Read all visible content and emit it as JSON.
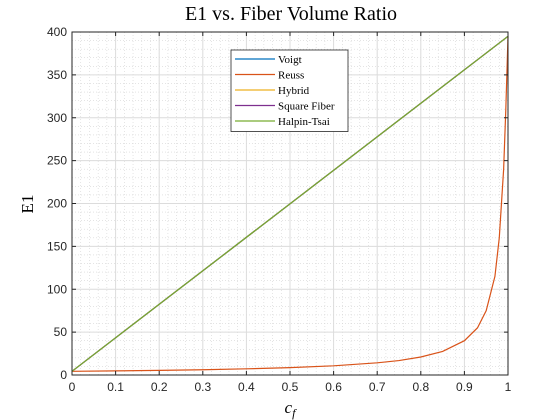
{
  "chart_data": {
    "type": "line",
    "title": "E1 vs. Fiber Volume Ratio",
    "xlabel_main": "c",
    "xlabel_sub": "f",
    "ylabel": "E1",
    "xlim": [
      0,
      1
    ],
    "ylim": [
      0,
      400
    ],
    "xticks": [
      0,
      0.1,
      0.2,
      0.3,
      0.4,
      0.5,
      0.6,
      0.7,
      0.8,
      0.9,
      1
    ],
    "yticks": [
      0,
      50,
      100,
      150,
      200,
      250,
      300,
      350,
      400
    ],
    "grid": true,
    "minor_grid": true,
    "legend_position": "top-center",
    "series": [
      {
        "name": "Voigt",
        "color": "#0072BD",
        "x": [
          0,
          1
        ],
        "y": [
          4.3,
          395
        ]
      },
      {
        "name": "Reuss",
        "color": "#D95319",
        "x": [
          0,
          0.1,
          0.2,
          0.3,
          0.4,
          0.5,
          0.6,
          0.7,
          0.75,
          0.8,
          0.85,
          0.9,
          0.93,
          0.95,
          0.97,
          0.98,
          0.99,
          0.995,
          1
        ],
        "y": [
          4.3,
          4.8,
          5.4,
          6.1,
          7.2,
          8.6,
          10.7,
          14.2,
          16.8,
          21.0,
          27.5,
          40.0,
          55.0,
          75.0,
          115.0,
          160.0,
          240.0,
          310.0,
          395.0
        ]
      },
      {
        "name": "Hybrid",
        "color": "#EDB120",
        "x": [
          0,
          1
        ],
        "y": [
          4.3,
          395
        ]
      },
      {
        "name": "Square Fiber",
        "color": "#7E2F8E",
        "x": [
          0,
          1
        ],
        "y": [
          4.3,
          395
        ]
      },
      {
        "name": "Halpin-Tsai",
        "color": "#77AC30",
        "x": [
          0,
          1
        ],
        "y": [
          4.3,
          395
        ]
      }
    ]
  }
}
